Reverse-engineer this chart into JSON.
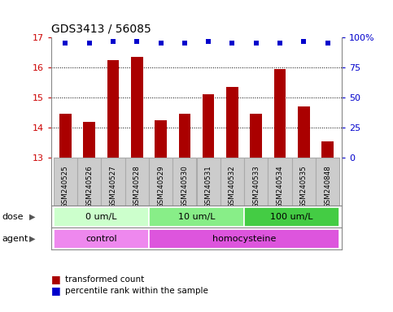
{
  "title": "GDS3413 / 56085",
  "samples": [
    "GSM240525",
    "GSM240526",
    "GSM240527",
    "GSM240528",
    "GSM240529",
    "GSM240530",
    "GSM240531",
    "GSM240532",
    "GSM240533",
    "GSM240534",
    "GSM240535",
    "GSM240848"
  ],
  "transformed_counts": [
    14.45,
    14.2,
    16.25,
    16.35,
    14.25,
    14.45,
    15.1,
    15.35,
    14.45,
    15.95,
    14.7,
    13.55
  ],
  "percentile_ranks": [
    95,
    95,
    97,
    97,
    95,
    95,
    97,
    95,
    95,
    95,
    97,
    95
  ],
  "bar_color": "#aa0000",
  "dot_color": "#0000cc",
  "ylim_left": [
    13,
    17
  ],
  "ylim_right": [
    0,
    100
  ],
  "yticks_left": [
    13,
    14,
    15,
    16,
    17
  ],
  "yticks_right": [
    0,
    25,
    50,
    75,
    100
  ],
  "grid_lines_at": [
    14,
    15,
    16
  ],
  "dose_groups": [
    {
      "label": "0 um/L",
      "start": 0,
      "end": 3,
      "color": "#ccffcc"
    },
    {
      "label": "10 um/L",
      "start": 4,
      "end": 7,
      "color": "#88ee88"
    },
    {
      "label": "100 um/L",
      "start": 8,
      "end": 11,
      "color": "#44cc44"
    }
  ],
  "agent_groups": [
    {
      "label": "control",
      "start": 0,
      "end": 3,
      "color": "#ee88ee"
    },
    {
      "label": "homocysteine",
      "start": 4,
      "end": 11,
      "color": "#dd55dd"
    }
  ],
  "dose_label": "dose",
  "agent_label": "agent",
  "legend_bar_label": "transformed count",
  "legend_dot_label": "percentile rank within the sample",
  "bg_color": "#ffffff",
  "sample_bg_color": "#cccccc",
  "sample_border_color": "#aaaaaa",
  "tick_color_left": "#cc0000",
  "tick_color_right": "#0000cc",
  "bar_width": 0.5
}
